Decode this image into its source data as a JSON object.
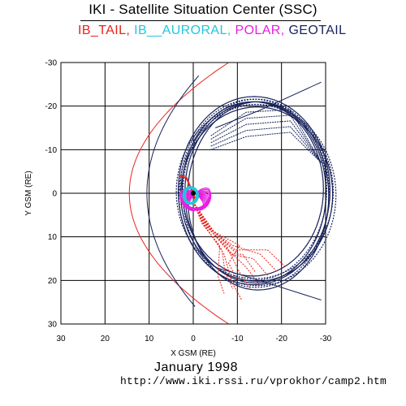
{
  "header": {
    "title": "IKI - Satellite Situation Center (SSC)"
  },
  "legend": [
    {
      "label": "IB_TAIL,",
      "color": "#e8231e"
    },
    {
      "label": "IB__AURORAL,",
      "color": "#22c6d8"
    },
    {
      "label": "POLAR,",
      "color": "#e620e0"
    },
    {
      "label": "GEOTAIL",
      "color": "#18235c"
    }
  ],
  "footer": {
    "date": "January    1998",
    "url": "http://www.iki.rssi.ru/vprokhor/camp2.htm"
  },
  "chart_data": {
    "type": "line",
    "title": "IKI - Satellite Situation Center (SSC)",
    "xlabel": "X GSM (RE)",
    "ylabel": "Y GSM (RE)",
    "xlim": [
      30,
      -30
    ],
    "ylim": [
      30,
      -30
    ],
    "x_ticks": [
      "30",
      "20",
      "10",
      "0",
      "-10",
      "-20",
      "-30"
    ],
    "y_ticks": [
      "-30",
      "-20",
      "-10",
      "0",
      "10",
      "20",
      "30"
    ],
    "grid": true,
    "series": [
      {
        "name": "IB_TAIL",
        "color": "#e8231e"
      },
      {
        "name": "IB__AURORAL",
        "color": "#22c6d8"
      },
      {
        "name": "POLAR",
        "color": "#e620e0"
      },
      {
        "name": "GEOTAIL",
        "color": "#18235c"
      }
    ]
  }
}
